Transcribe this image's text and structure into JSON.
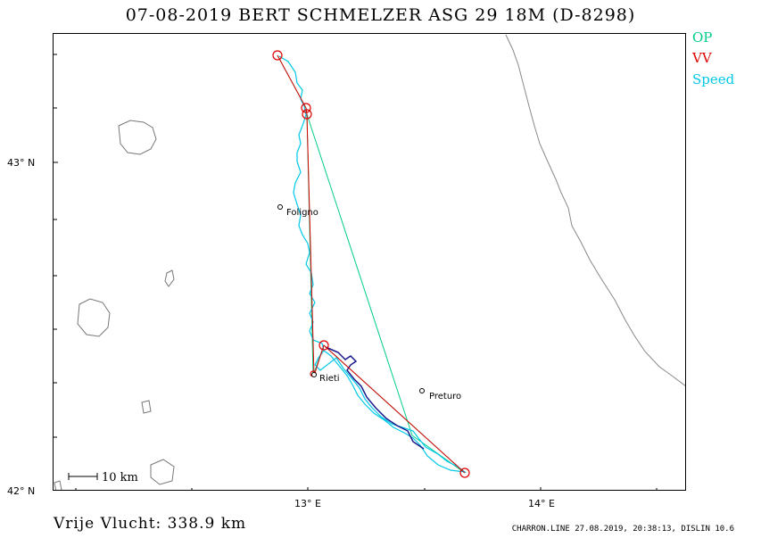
{
  "header": {
    "title": "07-08-2019   BERT SCHMELZER   ASG 29 18M (D-8298)"
  },
  "legend": {
    "items": [
      {
        "label": "OP",
        "color": "#00cc88"
      },
      {
        "label": "VV",
        "color": "#dd0000"
      },
      {
        "label": "Speed",
        "color": "#00c8e8"
      }
    ]
  },
  "axes": {
    "y_ticks": [
      "43° N",
      "42° N"
    ],
    "x_ticks": [
      "13° E",
      "14° E"
    ]
  },
  "map": {
    "cities": [
      {
        "name": "Foligno"
      },
      {
        "name": "Rieti"
      },
      {
        "name": "Preturo"
      }
    ],
    "scale_label": "10 km"
  },
  "footer": {
    "distance_label": "Vrije Vlucht:  338.9 km",
    "credit": "CHARRON.LINE 27.08.2019, 20:38:13, DISLIN 10.6"
  }
}
